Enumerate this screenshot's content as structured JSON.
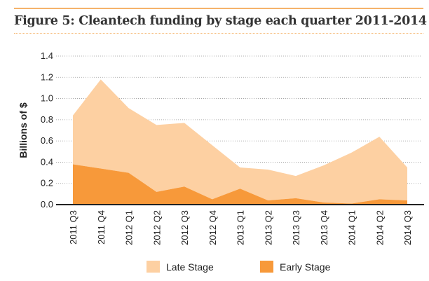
{
  "title": "Figure 5: Cleantech funding by stage each quarter 2011-2014",
  "chart_data": {
    "type": "area",
    "stacked": true,
    "title": "Figure 5: Cleantech funding by stage each quarter 2011-2014",
    "xlabel": "",
    "ylabel": "Billions of $",
    "ylim": [
      0,
      1.4
    ],
    "yticks": [
      "0.0",
      "0.2",
      "0.4",
      "0.6",
      "0.8",
      "1.0",
      "1.2",
      "1.4"
    ],
    "grid": true,
    "legend_position": "bottom",
    "categories": [
      "2011 Q3",
      "2011 Q4",
      "2012 Q1",
      "2012 Q2",
      "2012 Q3",
      "2012 Q4",
      "2013 Q1",
      "2013 Q2",
      "2013 Q3",
      "2013 Q4",
      "2014 Q1",
      "2014 Q2",
      "2014 Q3"
    ],
    "series": [
      {
        "name": "Early Stage",
        "color": "#f7993a",
        "values": [
          0.38,
          0.34,
          0.3,
          0.12,
          0.17,
          0.05,
          0.15,
          0.04,
          0.06,
          0.02,
          0.01,
          0.05,
          0.04
        ]
      },
      {
        "name": "Late Stage",
        "color": "#fdd0a2",
        "values": [
          0.46,
          0.84,
          0.61,
          0.63,
          0.6,
          0.51,
          0.2,
          0.29,
          0.21,
          0.35,
          0.48,
          0.59,
          0.31
        ]
      }
    ]
  }
}
